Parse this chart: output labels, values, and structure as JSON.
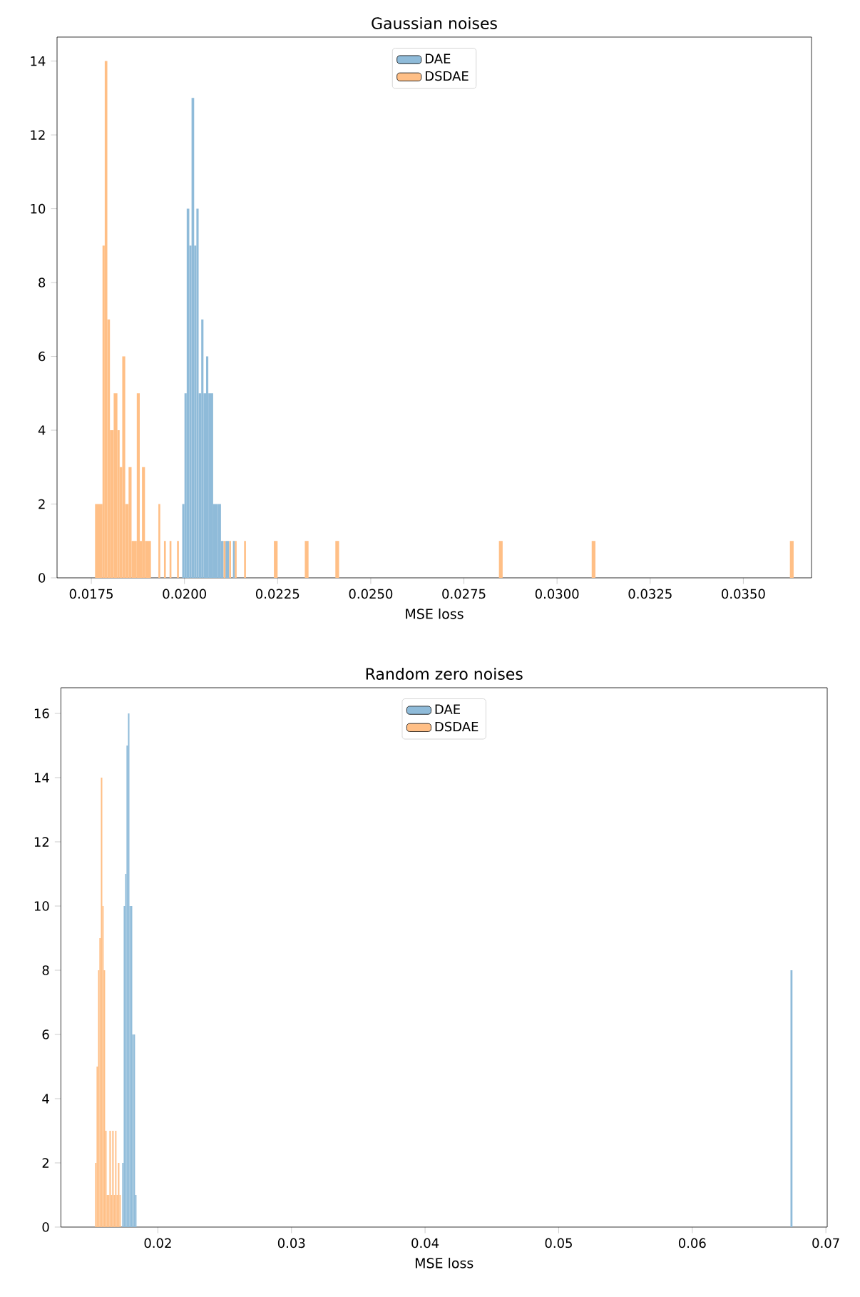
{
  "chart_data": [
    {
      "type": "histogram",
      "title": "Gaussian noises",
      "xlabel": "MSE loss",
      "legend": "top",
      "xlim": [
        0.01658,
        0.03683
      ],
      "ylim": [
        0,
        14.65
      ],
      "xticks": [
        {
          "value": 0.0175,
          "label": "0.0175"
        },
        {
          "value": 0.02,
          "label": "0.0200"
        },
        {
          "value": 0.0225,
          "label": "0.0225"
        },
        {
          "value": 0.025,
          "label": "0.0250"
        },
        {
          "value": 0.0275,
          "label": "0.0275"
        },
        {
          "value": 0.03,
          "label": "0.0300"
        },
        {
          "value": 0.0325,
          "label": "0.0325"
        },
        {
          "value": 0.035,
          "label": "0.0350"
        }
      ],
      "yticks": [
        0,
        2,
        4,
        6,
        8,
        10,
        12,
        14
      ],
      "bins": [
        0.0176,
        0.0178,
        0.01786,
        0.01793,
        0.018,
        0.0181,
        0.0182,
        0.01826,
        0.01833,
        0.01841,
        0.0185,
        0.01858,
        0.01872,
        0.0188,
        0.01886,
        0.01894,
        0.0191,
        0.0193,
        0.01935,
        0.01945,
        0.0195,
        0.0196,
        0.01965,
        0.0198,
        0.01985,
        0.01994,
        0.02,
        0.02006,
        0.02013,
        0.02019,
        0.02026,
        0.02032,
        0.02038,
        0.02045,
        0.02051,
        0.02058,
        0.02064,
        0.02077,
        0.0209,
        0.02098,
        0.02105,
        0.0211,
        0.0212,
        0.02125,
        0.0213,
        0.02135,
        0.0214,
        0.0216,
        0.02165,
        0.0224,
        0.0225,
        0.02323,
        0.02333,
        0.02405,
        0.02415,
        0.02844,
        0.02854,
        0.03093,
        0.03103,
        0.03625,
        0.03635
      ],
      "series": [
        {
          "name": "DAE",
          "color": "#8fbbd9",
          "values": [
            0,
            0,
            0,
            0,
            0,
            0,
            0,
            0,
            0,
            0,
            0,
            0,
            0,
            0,
            0,
            0,
            0,
            0,
            0,
            0,
            0,
            0,
            0,
            0,
            0,
            2,
            5,
            10,
            9,
            13,
            9,
            10,
            5,
            7,
            5,
            6,
            5,
            2,
            2,
            1,
            0,
            1,
            0,
            0,
            1,
            0,
            0,
            0,
            0,
            0,
            0,
            0,
            0,
            0,
            0,
            0,
            0,
            0,
            0,
            0
          ]
        },
        {
          "name": "DSDAE",
          "color": "#ffbf86",
          "values": [
            2,
            9,
            14,
            7,
            4,
            5,
            4,
            3,
            6,
            2,
            3,
            1,
            5,
            1,
            3,
            1,
            0,
            2,
            0,
            1,
            0,
            1,
            0,
            1,
            0,
            0,
            0,
            0,
            0,
            0,
            0,
            0,
            0,
            0,
            0,
            0,
            0,
            0,
            0,
            0,
            1,
            0,
            1,
            0,
            0,
            1,
            0,
            1,
            0,
            1,
            0,
            1,
            0,
            1,
            0,
            1,
            0,
            1,
            0,
            1
          ]
        }
      ]
    },
    {
      "type": "histogram",
      "title": "Random zero noises",
      "xlabel": "MSE loss",
      "legend": "top",
      "xlim": [
        0.01274,
        0.0701
      ],
      "ylim": [
        0,
        16.8
      ],
      "xticks": [
        0.02,
        0.03,
        0.04,
        0.05,
        0.06,
        0.07
      ],
      "yticks": [
        0,
        2,
        4,
        6,
        8,
        10,
        12,
        14,
        16
      ],
      "bins": [
        0.0153,
        0.01541,
        0.01552,
        0.01562,
        0.01573,
        0.01584,
        0.01594,
        0.01605,
        0.01616,
        0.01626,
        0.01637,
        0.01648,
        0.01658,
        0.01669,
        0.0168,
        0.0169,
        0.01701,
        0.01712,
        0.01722,
        0.01733,
        0.01744,
        0.01755,
        0.01765,
        0.01776,
        0.01787,
        0.01797,
        0.01808,
        0.01819,
        0.01829,
        0.0184,
        0.06735,
        0.0675
      ],
      "series": [
        {
          "name": "DAE",
          "color": "#8fbbd9",
          "values": [
            0,
            0,
            0,
            0,
            0,
            0,
            0,
            0,
            0,
            0,
            0,
            0,
            0,
            0,
            0,
            0,
            0,
            0,
            0,
            2,
            10,
            11,
            15,
            16,
            10,
            10,
            6,
            6,
            1,
            0,
            8
          ]
        },
        {
          "name": "DSDAE",
          "color": "#ffbf86",
          "values": [
            2,
            5,
            8,
            9,
            14,
            10,
            8,
            3,
            1,
            1,
            3,
            1,
            3,
            1,
            3,
            1,
            2,
            1,
            0,
            0,
            0,
            0,
            0,
            0,
            0,
            0,
            0,
            0,
            0,
            0,
            0
          ]
        }
      ]
    }
  ]
}
